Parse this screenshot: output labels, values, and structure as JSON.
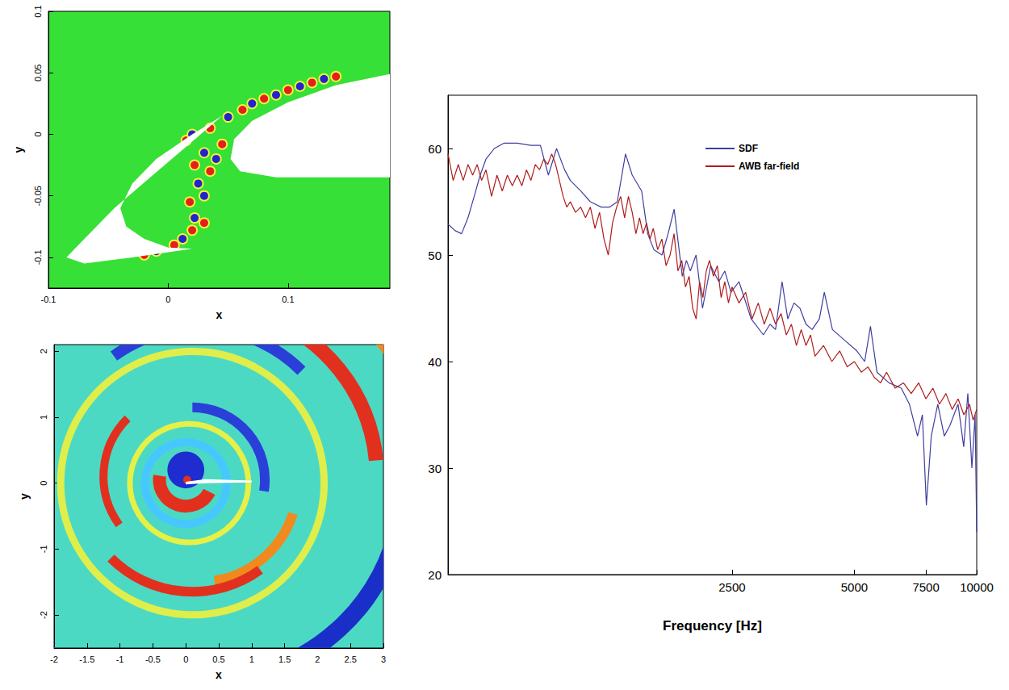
{
  "chart_data": [
    {
      "type": "contour",
      "xlabel": "x",
      "ylabel": "y",
      "xlim": [
        -0.1,
        0.185
      ],
      "ylim": [
        -0.125,
        0.1
      ],
      "xticks": [
        -0.1,
        0,
        0.1
      ],
      "yticks": [
        -0.1,
        -0.05,
        0,
        0.05,
        0.1
      ],
      "grid": false
    },
    {
      "type": "contour",
      "xlabel": "x",
      "ylabel": "y",
      "xlim": [
        -2,
        3
      ],
      "ylim": [
        -2.5,
        2.1
      ],
      "xticks": [
        -2,
        -1.5,
        -1,
        -0.5,
        0,
        0.5,
        1,
        1.5,
        2,
        2.5,
        3
      ],
      "yticks": [
        -2,
        -1,
        0,
        1,
        2
      ],
      "grid": false
    },
    {
      "type": "line",
      "xlabel": "Frequency [Hz]",
      "log": "x",
      "grid": false,
      "legend": "upper right",
      "xlim": [
        500,
        10000
      ],
      "ylim": [
        20,
        65
      ],
      "xticks": [
        2500,
        5000,
        7500,
        10000
      ],
      "yticks": [
        20,
        30,
        40,
        50,
        60
      ],
      "series": [
        {
          "name": "SDF",
          "color": "#3f3f9f",
          "x": [
            500,
            520,
            540,
            560,
            580,
            600,
            620,
            650,
            686,
            740,
            800,
            844,
            883,
            925,
            968,
            1000,
            1062,
            1120,
            1191,
            1250,
            1305,
            1367,
            1420,
            1498,
            1550,
            1606,
            1681,
            1740,
            1801,
            1886,
            1930,
            1974,
            2039,
            2115,
            2215,
            2319,
            2400,
            2485,
            2600,
            2787,
            2986,
            3100,
            3199,
            3319,
            3428,
            3550,
            3673,
            3800,
            3936,
            4100,
            4217,
            4415,
            4731,
            5070,
            5300,
            5477,
            5682,
            6086,
            6522,
            6829,
            7151,
            7350,
            7518,
            7731,
            8020,
            8320,
            8590,
            8995,
            9290,
            9510,
            9730,
            9910,
            10000
          ],
          "values": [
            52.9,
            52.3,
            52,
            53.5,
            55.5,
            57.5,
            59,
            60,
            60.5,
            60.5,
            60.3,
            60.3,
            57.5,
            60,
            58,
            57,
            56,
            55,
            54.5,
            54.5,
            55,
            59.5,
            57.5,
            56,
            52,
            50.5,
            50,
            52,
            54.3,
            48,
            49.5,
            48.5,
            50,
            45,
            49,
            47.5,
            48.5,
            46.5,
            47.5,
            44,
            42.5,
            43.5,
            43,
            47.5,
            44,
            45.5,
            45,
            43.5,
            43,
            44,
            46.5,
            43,
            42,
            41,
            40,
            43.3,
            39,
            38,
            37.5,
            36,
            33,
            35,
            26.5,
            33,
            36,
            33,
            34,
            36,
            32,
            37,
            30,
            35,
            24
          ]
        },
        {
          "name": "AWB far-field",
          "color": "#b01c1c",
          "x": [
            500,
            515,
            530,
            545,
            560,
            575,
            590,
            605,
            620,
            640,
            660,
            680,
            700,
            720,
            740,
            760,
            780,
            800,
            820,
            840,
            860,
            880,
            900,
            920,
            940,
            960,
            980,
            1000,
            1030,
            1060,
            1090,
            1120,
            1150,
            1180,
            1210,
            1240,
            1270,
            1300,
            1330,
            1360,
            1390,
            1420,
            1450,
            1480,
            1510,
            1540,
            1570,
            1600,
            1640,
            1680,
            1720,
            1760,
            1800,
            1840,
            1880,
            1920,
            1960,
            2000,
            2040,
            2080,
            2120,
            2160,
            2200,
            2250,
            2300,
            2350,
            2400,
            2450,
            2500,
            2600,
            2700,
            2800,
            2900,
            3000,
            3100,
            3200,
            3300,
            3400,
            3500,
            3600,
            3700,
            3800,
            3900,
            4000,
            4200,
            4400,
            4600,
            4800,
            5000,
            5200,
            5400,
            5600,
            5800,
            6000,
            6300,
            6600,
            6900,
            7200,
            7500,
            7800,
            8100,
            8400,
            8700,
            9000,
            9300,
            9600,
            9800,
            10000
          ],
          "values": [
            59.5,
            57,
            58.5,
            57,
            58.5,
            57.5,
            58.5,
            57,
            58,
            55.5,
            57.5,
            56,
            57.5,
            56.5,
            57.5,
            56.5,
            58,
            57,
            58.5,
            58,
            59,
            58.5,
            59.5,
            58.5,
            57,
            55.5,
            54.5,
            55,
            54,
            54.5,
            53.5,
            54.5,
            52.5,
            54,
            51.5,
            50,
            53,
            54.5,
            55.5,
            53.5,
            55.5,
            54,
            52,
            53.5,
            52,
            53,
            51.5,
            52.5,
            50.5,
            51.5,
            49,
            50,
            52,
            48.5,
            49.5,
            47,
            48,
            45,
            44,
            47.5,
            46,
            48.5,
            49.5,
            48,
            49,
            46,
            47.5,
            45.5,
            47,
            45.5,
            46.5,
            44,
            45.5,
            43.5,
            45,
            43.5,
            44.5,
            42.5,
            43.5,
            41.5,
            43,
            41.5,
            42.5,
            40.5,
            41.5,
            40,
            41,
            39.5,
            40,
            39,
            39.5,
            38.5,
            38,
            39,
            37.5,
            38,
            37,
            38,
            36.5,
            37.5,
            36,
            37,
            35.5,
            36.5,
            35,
            36,
            34.5,
            35.5
          ]
        }
      ]
    }
  ]
}
